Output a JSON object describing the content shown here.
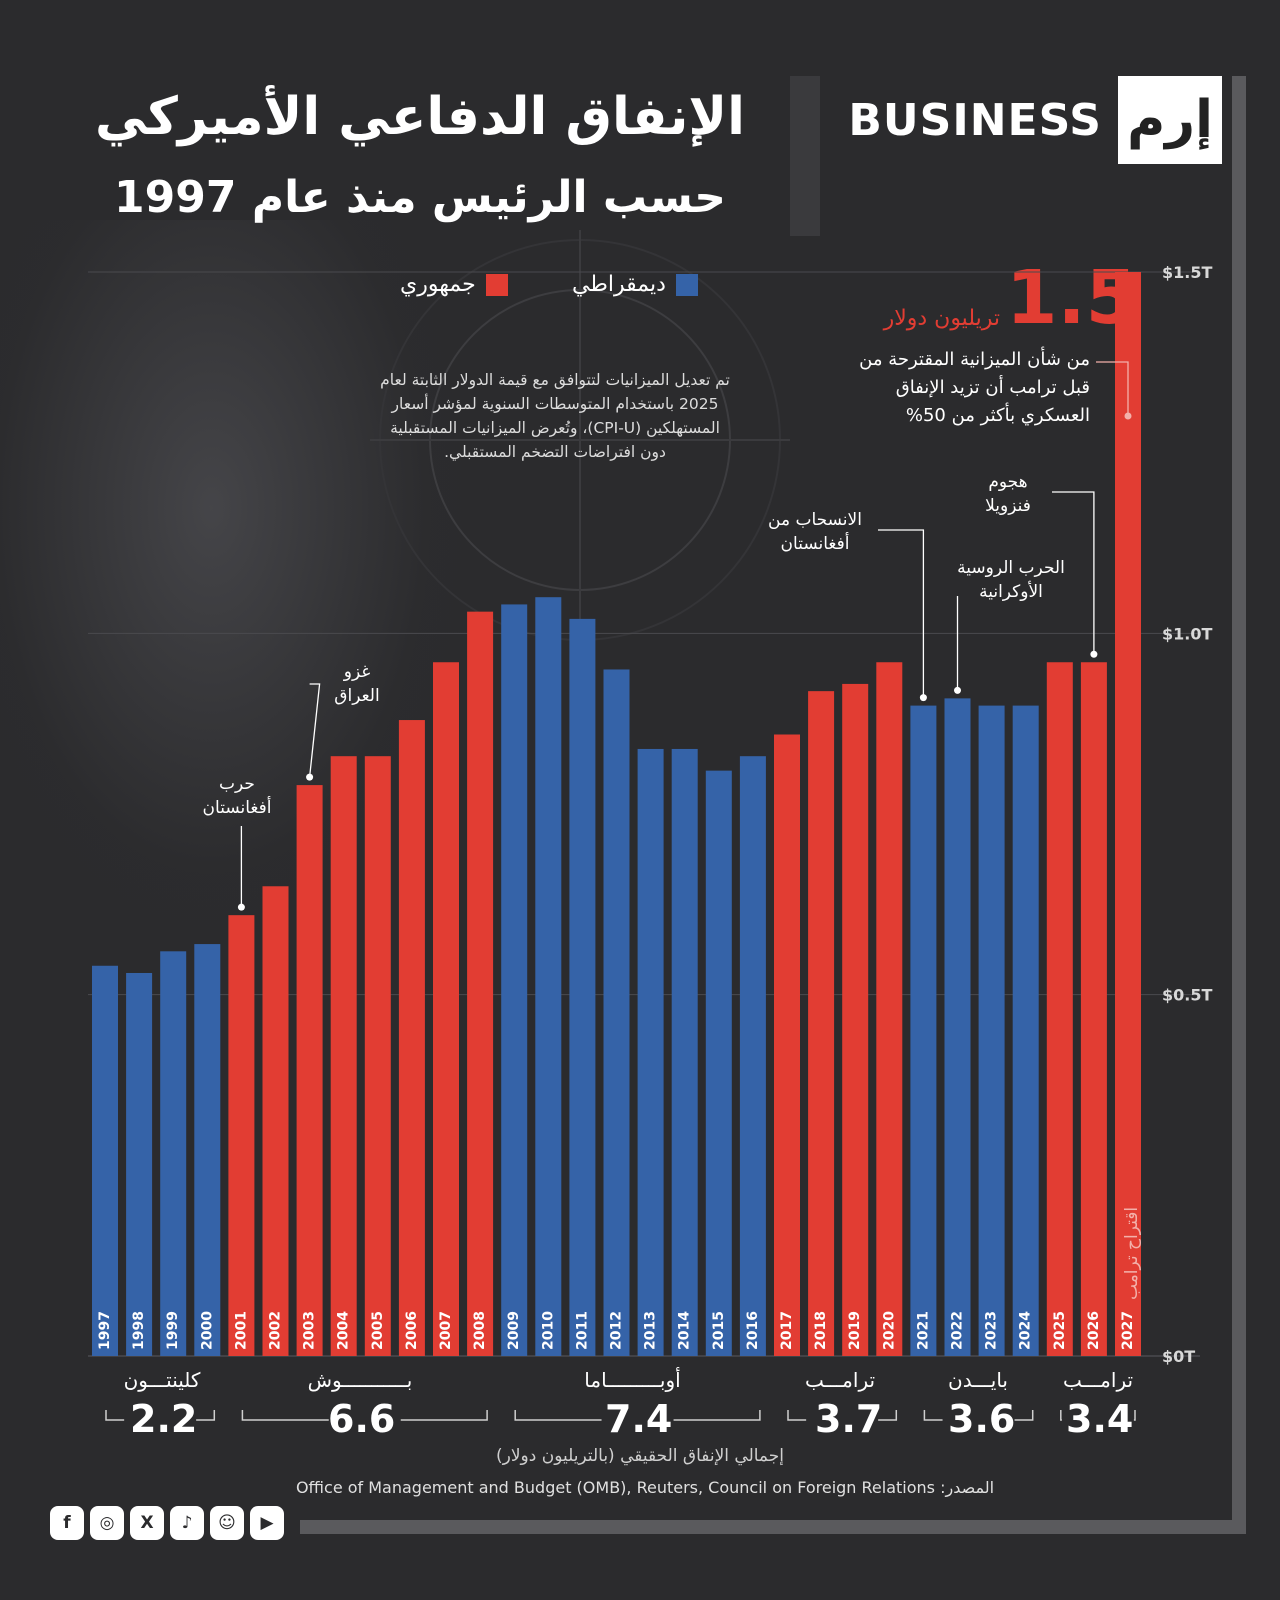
{
  "header": {
    "brand_text": "BUSINESS",
    "brand_logo": "إرم",
    "title": "الإنفاق الدفاعي الأميركي",
    "subtitle": "حسب الرئيس منذ عام 1997"
  },
  "legend": {
    "democrat_label": "ديمقراطي",
    "republican_label": "جمهوري"
  },
  "colors": {
    "democrat": "#3563a8",
    "republican": "#e23d33",
    "background": "#2b2b2d"
  },
  "note": "تم تعديل الميزانيات لتتوافق مع قيمة الدولار الثابتة لعام 2025 باستخدام المتوسطات السنوية لمؤشر أسعار المستهلكين (CPI-U)، وتُعرض الميزانيات المستقبلية دون افتراضات التضخم المستقبلي.",
  "callout": {
    "number": "1.5",
    "unit": "تريليون دولار",
    "text": "من شأن الميزانية المقترحة من قبل ترامب أن تزيد الإنفاق العسكري بأكثر من 50%"
  },
  "annotations": {
    "afghan_war": "حرب أفغانستان",
    "iraq_invasion": "غزو العراق",
    "afghan_withdrawal": "الانسحاب من أفغانستان",
    "russia_ukraine": "الحرب الروسية الأوكرانية",
    "venezuela": "هجوم فنزويلا",
    "trump_proposal": "اقتراح ترامب"
  },
  "presidents": [
    {
      "name": "كلينتـــون",
      "total": "2.2"
    },
    {
      "name": "بـــــــــــوش",
      "total": "6.6"
    },
    {
      "name": "أوبـــــــــاما",
      "total": "7.4"
    },
    {
      "name": "ترامـــب",
      "total": "3.7"
    },
    {
      "name": "بايـــدن",
      "total": "3.6"
    },
    {
      "name": "ترامـــب",
      "total": "3.4"
    }
  ],
  "footer": {
    "total_label": "إجمالي الإنفاق الحقيقي (بالتريليون دولار)",
    "source": "المصدر:  Office of Management and Budget (OMB), Reuters, Council on Foreign Relations"
  },
  "socials": [
    "facebook-icon",
    "instagram-icon",
    "x-icon",
    "tiktok-icon",
    "snapchat-icon",
    "youtube-icon"
  ],
  "chart_data": {
    "type": "bar",
    "categories": [
      "1997",
      "1998",
      "1999",
      "2000",
      "2001",
      "2002",
      "2003",
      "2004",
      "2005",
      "2006",
      "2007",
      "2008",
      "2009",
      "2010",
      "2011",
      "2012",
      "2013",
      "2014",
      "2015",
      "2016",
      "2017",
      "2018",
      "2019",
      "2020",
      "2021",
      "2022",
      "2023",
      "2024",
      "2025",
      "2026",
      "2027"
    ],
    "values": [
      0.54,
      0.53,
      0.56,
      0.57,
      0.61,
      0.65,
      0.79,
      0.83,
      0.83,
      0.88,
      0.96,
      1.03,
      1.04,
      1.05,
      1.02,
      0.95,
      0.84,
      0.84,
      0.81,
      0.83,
      0.86,
      0.92,
      0.93,
      0.96,
      0.9,
      0.91,
      0.9,
      0.9,
      0.96,
      0.96,
      1.5
    ],
    "party": [
      "D",
      "D",
      "D",
      "D",
      "R",
      "R",
      "R",
      "R",
      "R",
      "R",
      "R",
      "R",
      "D",
      "D",
      "D",
      "D",
      "D",
      "D",
      "D",
      "D",
      "R",
      "R",
      "R",
      "R",
      "D",
      "D",
      "D",
      "D",
      "R",
      "R",
      "R"
    ],
    "ylim": [
      0,
      1.5
    ],
    "yticks": [
      {
        "value": 0,
        "label": "$0T"
      },
      {
        "value": 0.5,
        "label": "$0.5T"
      },
      {
        "value": 1.0,
        "label": "$1.0T"
      },
      {
        "value": 1.5,
        "label": "$1.5T"
      }
    ],
    "grid": true
  }
}
